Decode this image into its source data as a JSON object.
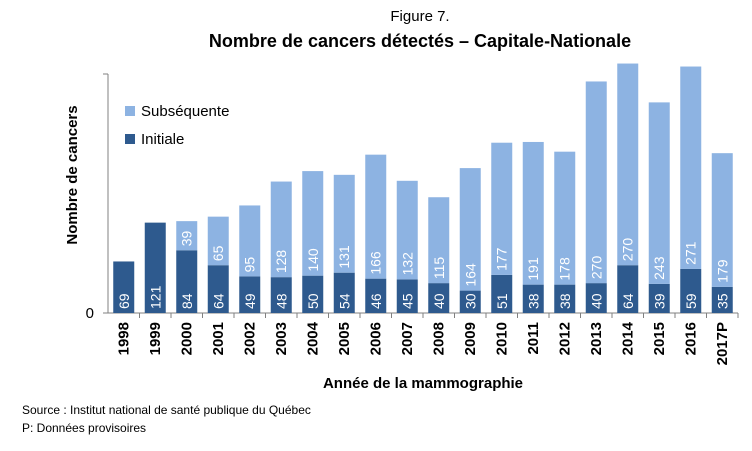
{
  "figure": {
    "label": "Figure 7.",
    "source": "Source : Institut national de santé publique du Québec",
    "note": "P: Données provisoires"
  },
  "colors": {
    "initiale": "#2E5A8E",
    "subsequente": "#8DB3E2",
    "axis": "#808080"
  },
  "chart_data": {
    "type": "bar",
    "stacked": true,
    "title": "Nombre de cancers détectés – Capitale-Nationale",
    "xlabel": "Année de la mammographie",
    "ylabel": "Nombre de cancers",
    "ylim": [
      0,
      320
    ],
    "yticks": [
      "0"
    ],
    "legend_position": "top-left",
    "categories": [
      "1998",
      "1999",
      "2000",
      "2001",
      "2002",
      "2003",
      "2004",
      "2005",
      "2006",
      "2007",
      "2008",
      "2009",
      "2010",
      "2011",
      "2012",
      "2013",
      "2014",
      "2015",
      "2016",
      "2017P"
    ],
    "series": [
      {
        "name": "Initiale",
        "values": [
          69,
          121,
          84,
          64,
          49,
          48,
          50,
          54,
          46,
          45,
          40,
          30,
          51,
          38,
          38,
          40,
          64,
          39,
          59,
          35
        ]
      },
      {
        "name": "Subséquente",
        "values": [
          null,
          null,
          39,
          65,
          95,
          128,
          140,
          131,
          166,
          132,
          115,
          164,
          177,
          191,
          178,
          270,
          270,
          243,
          271,
          179
        ]
      }
    ],
    "legend": [
      "Subséquente",
      "Initiale"
    ]
  }
}
